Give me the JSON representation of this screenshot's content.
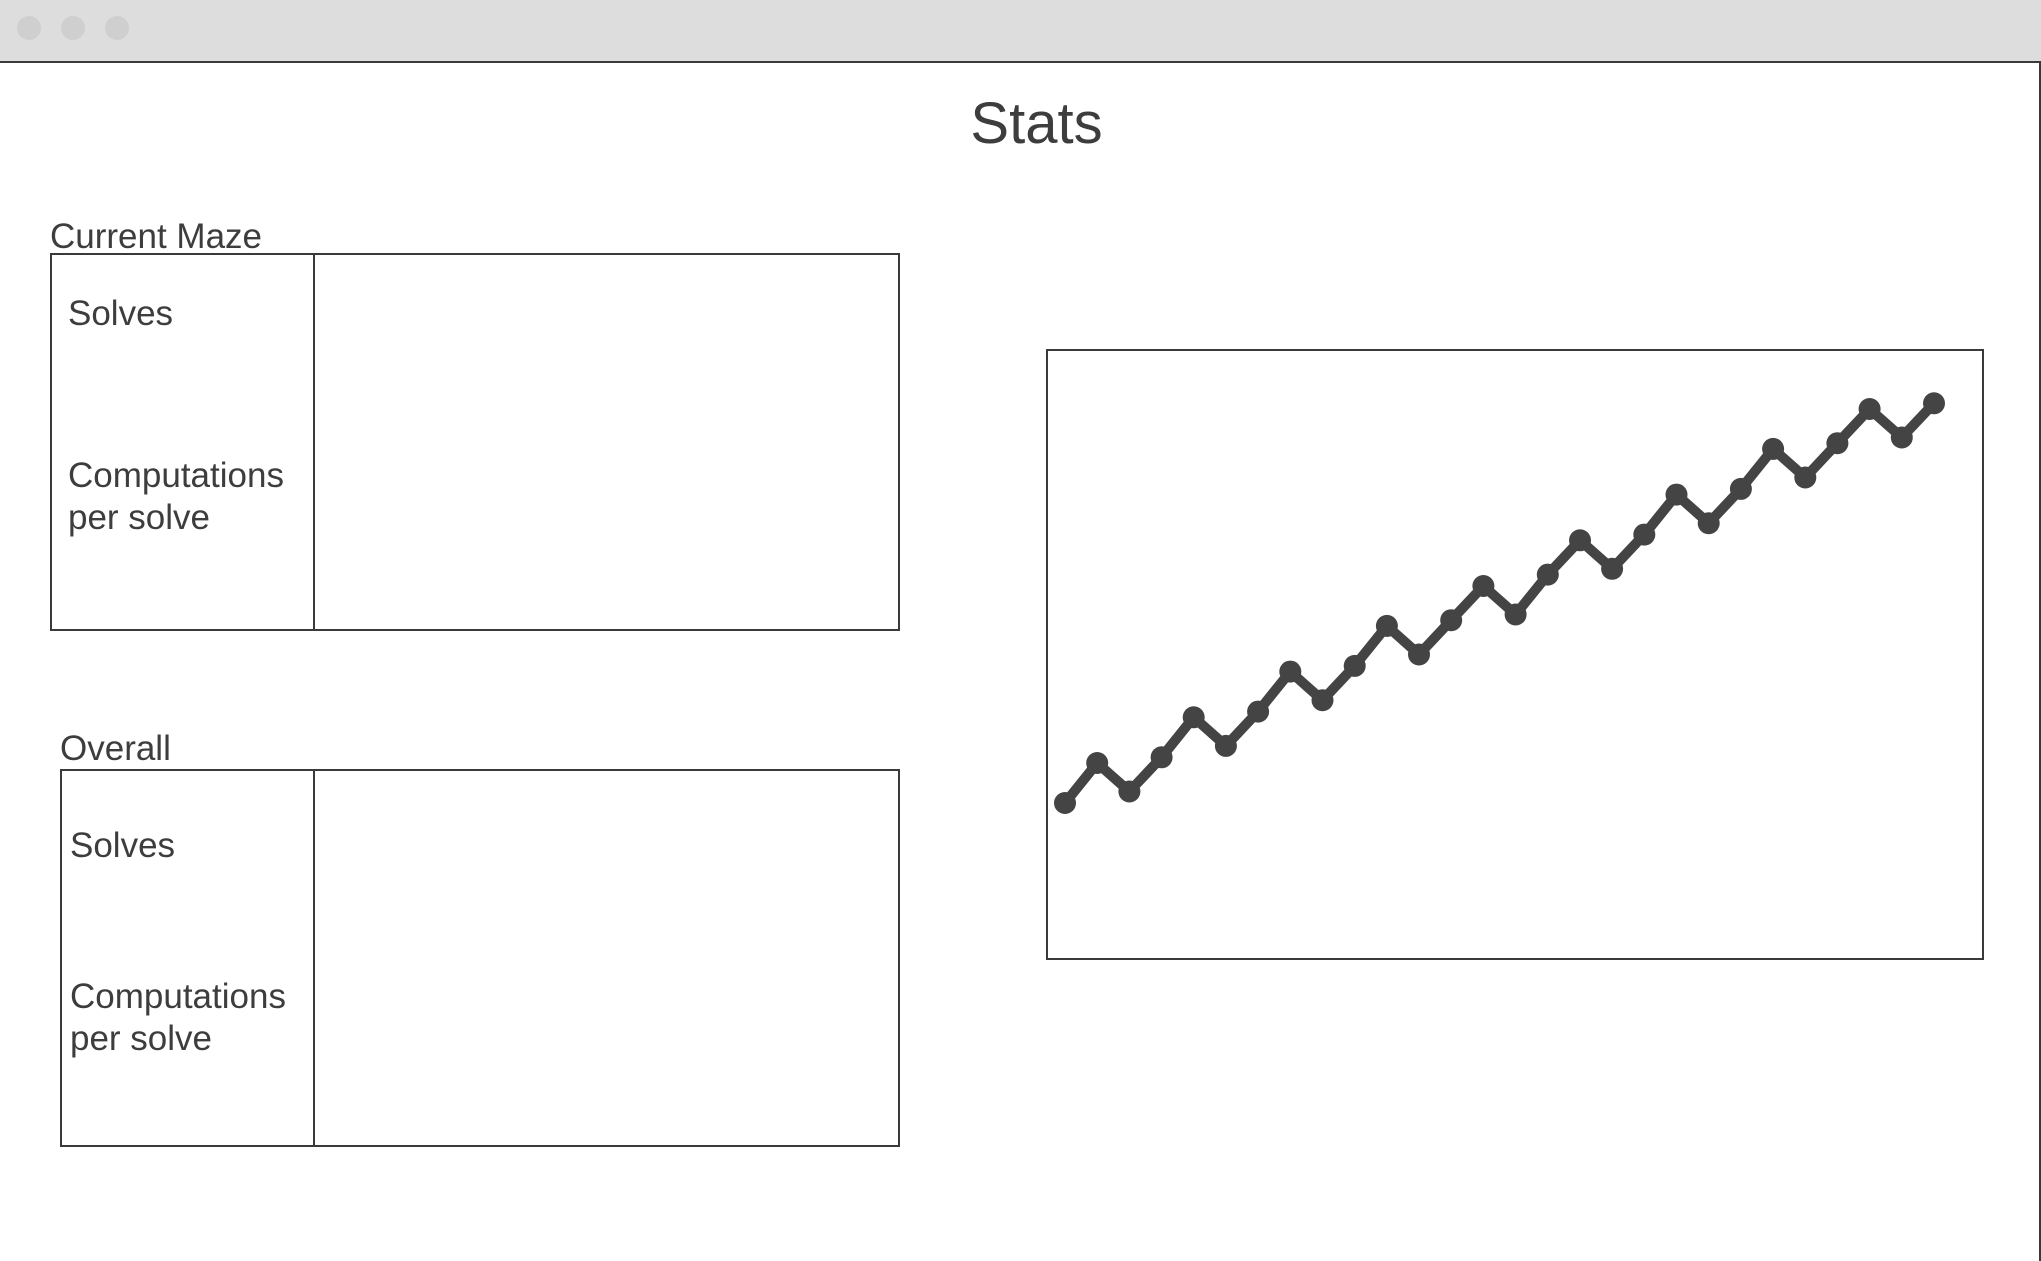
{
  "window": {
    "title": ""
  },
  "page": {
    "title": "Stats"
  },
  "current_maze": {
    "label": "Current Maze",
    "solves_label": "Solves",
    "computations_label": "Computations per solve",
    "solves_value": "",
    "computations_value": ""
  },
  "overall": {
    "label": "Overall",
    "solves_label": "Solves",
    "computations_label": "Computations per solve",
    "solves_value": "",
    "computations_value": ""
  },
  "colors": {
    "line": "#444444",
    "border": "#3a3a3a",
    "titlebar": "#dddddd"
  },
  "chart_data": {
    "type": "line",
    "title": "",
    "xlabel": "",
    "ylabel": "",
    "grid": false,
    "legend": "none",
    "xlim": [
      1,
      28
    ],
    "ylim": [
      0,
      100
    ],
    "x": [
      1,
      2,
      3,
      4,
      5,
      6,
      7,
      8,
      9,
      10,
      11,
      12,
      13,
      14,
      15,
      16,
      17,
      18,
      19,
      20,
      21,
      22,
      23,
      24,
      25,
      26,
      27,
      28
    ],
    "series": [
      {
        "name": "",
        "values": [
          24,
          31,
          26,
          32,
          39,
          34,
          40,
          47,
          42,
          48,
          55,
          50,
          56,
          62,
          57,
          64,
          70,
          65,
          71,
          78,
          73,
          79,
          86,
          81,
          87,
          93,
          88,
          94
        ]
      }
    ]
  }
}
